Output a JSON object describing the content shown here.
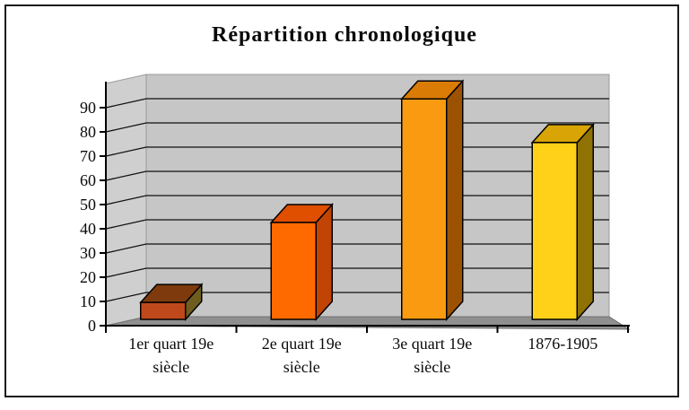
{
  "chart_data": {
    "type": "bar",
    "style": "3d-column",
    "title": "Répartition chronologique",
    "categories": [
      "1er quart 19e siècle",
      "2e quart 19e siècle",
      "3e quart 19e siècle",
      "1876-1905"
    ],
    "category_label_lines": [
      [
        "1er quart 19e",
        "siècle"
      ],
      [
        "2e quart 19e",
        "siècle"
      ],
      [
        "3e quart 19e",
        "siècle"
      ],
      [
        "1876-1905"
      ]
    ],
    "values": [
      7,
      40,
      91,
      73
    ],
    "xlabel": "",
    "ylabel": "",
    "ylim": [
      0,
      100
    ],
    "y_ticks": [
      0,
      10,
      20,
      30,
      40,
      50,
      60,
      70,
      80,
      90
    ],
    "grid": true,
    "legend": "none",
    "bar_colors": [
      {
        "front": "#c0491b",
        "top": "#7e3a0d",
        "side": "#6f5d1f"
      },
      {
        "front": "#ff6a00",
        "top": "#e04e00",
        "side": "#c14405"
      },
      {
        "front": "#f99a10",
        "top": "#da7b05",
        "side": "#9c5203"
      },
      {
        "front": "#ffd118",
        "top": "#d9a506",
        "side": "#8f7203"
      }
    ],
    "colors": {
      "back_wall": "#c6c6c6",
      "side_wall": "#cfcfcf",
      "floor": "#8f8f8f",
      "gridline": "#111111",
      "axis": "#000000",
      "text": "#0a0a0a",
      "frame_border": "#1b1b1b",
      "background": "#ffffff"
    }
  }
}
